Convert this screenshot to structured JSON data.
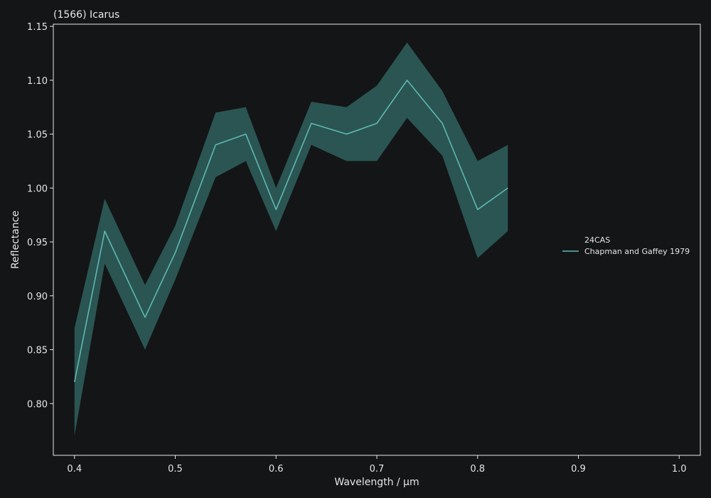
{
  "chart_data": {
    "type": "line",
    "title": "(1566) Icarus",
    "xlabel": "Wavelength / µm",
    "ylabel": "Reflectance",
    "xlim": [
      0.379,
      1.021
    ],
    "ylim": [
      0.752,
      1.152
    ],
    "xticks": [
      0.4,
      0.5,
      0.6,
      0.7,
      0.8,
      0.9,
      1.0
    ],
    "xtick_labels": [
      "0.4",
      "0.5",
      "0.6",
      "0.7",
      "0.8",
      "0.9",
      "1.0"
    ],
    "yticks": [
      0.8,
      0.85,
      0.9,
      0.95,
      1.0,
      1.05,
      1.1,
      1.15
    ],
    "ytick_labels": [
      "0.80",
      "0.85",
      "0.90",
      "0.95",
      "1.00",
      "1.05",
      "1.10",
      "1.15"
    ],
    "grid": false,
    "legend": {
      "title": "24CAS",
      "placement": "center-right",
      "entries": [
        "Chapman and Gaffey 1979"
      ]
    },
    "colors": {
      "background": "#141517",
      "axes": "#e6e6e6",
      "line": "#5fb8b3",
      "band": "#2a5552"
    },
    "series": [
      {
        "name": "Chapman and Gaffey 1979",
        "x": [
          0.4,
          0.43,
          0.47,
          0.5,
          0.54,
          0.57,
          0.6,
          0.635,
          0.67,
          0.7,
          0.73,
          0.765,
          0.8,
          0.83
        ],
        "y": [
          0.82,
          0.96,
          0.88,
          0.94,
          1.04,
          1.05,
          0.98,
          1.06,
          1.05,
          1.06,
          1.1,
          1.06,
          0.98,
          1.0
        ],
        "upper": [
          0.87,
          0.99,
          0.91,
          0.965,
          1.07,
          1.075,
          1.0,
          1.08,
          1.075,
          1.095,
          1.135,
          1.09,
          1.025,
          1.04
        ],
        "lower": [
          0.77,
          0.93,
          0.85,
          0.915,
          1.01,
          1.025,
          0.96,
          1.04,
          1.025,
          1.025,
          1.065,
          1.03,
          0.935,
          0.96
        ]
      }
    ]
  }
}
